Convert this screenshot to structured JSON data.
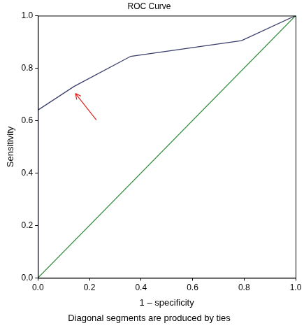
{
  "chart_data": {
    "type": "line",
    "title": "ROC Curve",
    "x_label": "1 – specificity",
    "y_label": "Sensitivity",
    "footnote": "Diagonal segments are produced by ties",
    "series": [
      {
        "color": "#3b3f6b",
        "x": [
          0,
          0,
          0.14,
          0.36,
          0.79,
          1
        ],
        "values": [
          0,
          0.64,
          0.73,
          0.845,
          0.905,
          1
        ]
      },
      {
        "color": "#2e8b3a",
        "x": [
          0,
          1
        ],
        "values": [
          0,
          1
        ]
      }
    ],
    "xlim": [
      0,
      1
    ],
    "ylim": [
      0,
      1
    ],
    "xticks": [
      {
        "value": 0,
        "label": "0.0"
      },
      0.2,
      0.4,
      0.6,
      0.8,
      {
        "value": 1,
        "label": "1.0"
      }
    ],
    "yticks": [
      {
        "value": 0,
        "label": "0.0"
      },
      0.2,
      0.4,
      0.6,
      0.8,
      {
        "value": 1,
        "label": "1.0"
      }
    ],
    "grid": false,
    "tick_labels": true
  }
}
